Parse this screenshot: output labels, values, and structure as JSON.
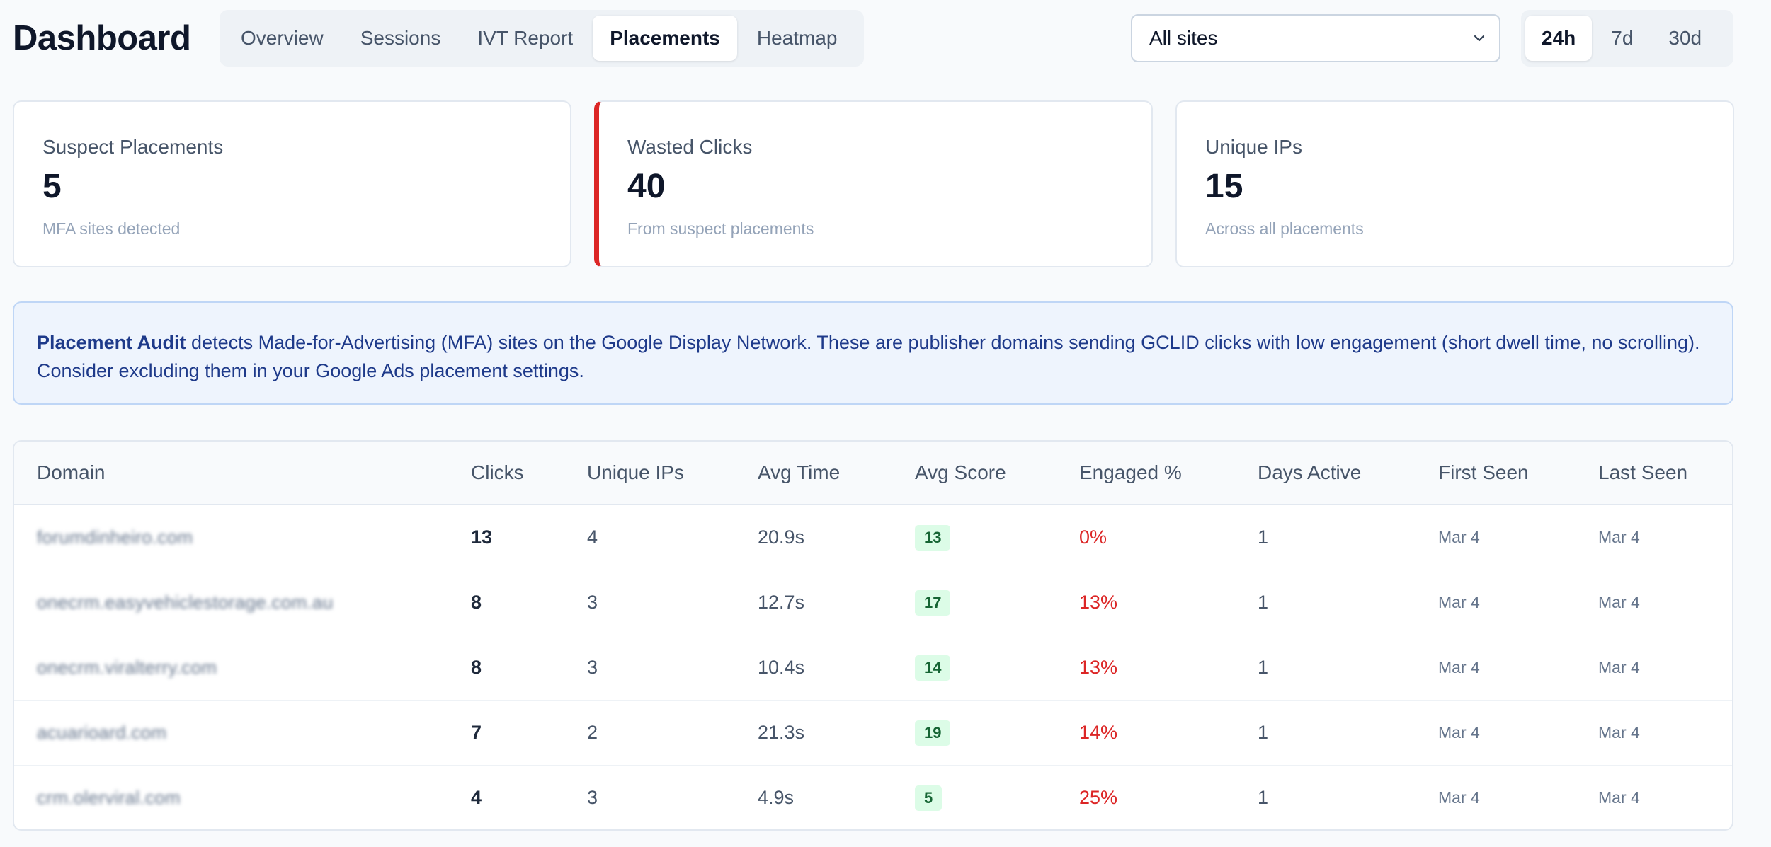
{
  "header": {
    "title": "Dashboard",
    "tabs": [
      {
        "label": "Overview",
        "active": false
      },
      {
        "label": "Sessions",
        "active": false
      },
      {
        "label": "IVT Report",
        "active": false
      },
      {
        "label": "Placements",
        "active": true
      },
      {
        "label": "Heatmap",
        "active": false
      }
    ],
    "site_select": {
      "value": "All sites",
      "icon": "chevron-down-icon"
    },
    "ranges": [
      {
        "label": "24h",
        "active": true
      },
      {
        "label": "7d",
        "active": false
      },
      {
        "label": "30d",
        "active": false
      }
    ]
  },
  "stats": [
    {
      "label": "Suspect Placements",
      "value": "5",
      "sub": "MFA sites detected"
    },
    {
      "label": "Wasted Clicks",
      "value": "40",
      "sub": "From suspect placements",
      "accent": "#dc2626"
    },
    {
      "label": "Unique IPs",
      "value": "15",
      "sub": "Across all placements"
    }
  ],
  "banner": {
    "bold": "Placement Audit",
    "text": " detects Made-for-Advertising (MFA) sites on the Google Display Network. These are publisher domains sending GCLID clicks with low engagement (short dwell time, no scrolling). Consider excluding them in your Google Ads placement settings."
  },
  "table": {
    "columns": [
      "Domain",
      "Clicks",
      "Unique IPs",
      "Avg Time",
      "Avg Score",
      "Engaged %",
      "Days Active",
      "First Seen",
      "Last Seen"
    ],
    "rows": [
      {
        "domain": "forumdinheiro.com",
        "clicks": "13",
        "unique_ips": "4",
        "avg_time": "20.9s",
        "avg_score": "13",
        "engaged": "0%",
        "days_active": "1",
        "first_seen": "Mar 4",
        "last_seen": "Mar 4"
      },
      {
        "domain": "onecrm.easyvehiclestorage.com.au",
        "clicks": "8",
        "unique_ips": "3",
        "avg_time": "12.7s",
        "avg_score": "17",
        "engaged": "13%",
        "days_active": "1",
        "first_seen": "Mar 4",
        "last_seen": "Mar 4"
      },
      {
        "domain": "onecrm.viralterry.com",
        "clicks": "8",
        "unique_ips": "3",
        "avg_time": "10.4s",
        "avg_score": "14",
        "engaged": "13%",
        "days_active": "1",
        "first_seen": "Mar 4",
        "last_seen": "Mar 4"
      },
      {
        "domain": "acuarioard.com",
        "clicks": "7",
        "unique_ips": "2",
        "avg_time": "21.3s",
        "avg_score": "19",
        "engaged": "14%",
        "days_active": "1",
        "first_seen": "Mar 4",
        "last_seen": "Mar 4"
      },
      {
        "domain": "crm.olerviral.com",
        "clicks": "4",
        "unique_ips": "3",
        "avg_time": "4.9s",
        "avg_score": "5",
        "engaged": "25%",
        "days_active": "1",
        "first_seen": "Mar 4",
        "last_seen": "Mar 4"
      }
    ]
  },
  "colors": {
    "accent_red": "#dc2626",
    "score_badge_bg": "#dcfce7",
    "score_badge_text": "#166534",
    "banner_text": "#1e3a8a"
  }
}
